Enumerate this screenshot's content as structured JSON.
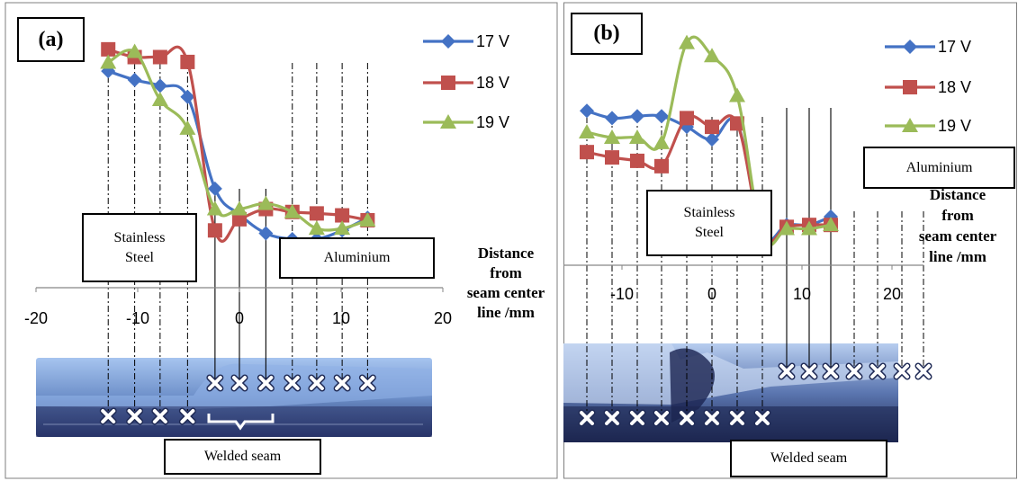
{
  "colors": {
    "s17": "#4472C4",
    "s18": "#C0504D",
    "s19": "#9BBB59"
  },
  "chart_data": [
    {
      "type": "line",
      "panel_label": "(a)",
      "x_ticks": [
        "-20",
        "-10",
        "0",
        "10",
        "20"
      ],
      "xlim": [
        -20,
        20
      ],
      "xlabel_lines": [
        "Distance",
        "from",
        "seam center",
        "line /mm"
      ],
      "series": [
        {
          "name": "17 V",
          "marker": "diamond",
          "x": [
            -12.9,
            -10.3,
            -7.8,
            -5.1,
            -2.4,
            0,
            2.6,
            5.2,
            7.6,
            10.1,
            12.6
          ],
          "y": [
            84.6,
            82.8,
            81.6,
            79.3,
            60.4,
            55.1,
            51.2,
            50.0,
            50.0,
            51.8,
            54.4
          ]
        },
        {
          "name": "18 V",
          "marker": "square",
          "x": [
            -12.9,
            -10.3,
            -7.8,
            -5.1,
            -2.4,
            0,
            2.6,
            5.2,
            7.6,
            10.1,
            12.6
          ],
          "y": [
            89.1,
            87.5,
            87.5,
            86.5,
            51.8,
            54.1,
            56.2,
            55.6,
            55.3,
            54.9,
            53.9
          ]
        },
        {
          "name": "19 V",
          "marker": "triangle",
          "x": [
            -12.9,
            -10.3,
            -7.8,
            -5.1,
            -2.4,
            0,
            2.6,
            5.2,
            7.6,
            10.1,
            12.6
          ],
          "y": [
            86.4,
            88.6,
            78.7,
            72.8,
            56.2,
            56.2,
            57.3,
            55.6,
            52.2,
            52.2,
            53.9
          ]
        }
      ]
    },
    {
      "type": "line",
      "panel_label": "(b)",
      "x_ticks": [
        "-10",
        "0",
        "10",
        "20"
      ],
      "xlim": [
        -16.5,
        23.5
      ],
      "xlabel_lines": [
        "Distance",
        "from",
        "seam center",
        "line /mm"
      ],
      "series": [
        {
          "name": "17 V",
          "marker": "diamond",
          "x": [
            -13.9,
            -11.1,
            -8.3,
            -5.6,
            -2.8,
            0,
            2.8,
            5.6,
            8.3,
            10.8,
            13.2
          ],
          "y": [
            71.8,
            70.3,
            70.7,
            70.7,
            68.5,
            65.9,
            69.2,
            46.4,
            48.3,
            48.3,
            50.0
          ]
        },
        {
          "name": "18 V",
          "marker": "square",
          "x": [
            -13.9,
            -11.1,
            -8.3,
            -5.6,
            -2.8,
            0,
            2.8,
            5.6,
            8.3,
            10.8,
            13.2
          ],
          "y": [
            63.3,
            62.2,
            61.5,
            60.4,
            70.3,
            68.5,
            69.2,
            46.0,
            47.9,
            48.3,
            48.3
          ]
        },
        {
          "name": "19 V",
          "marker": "triangle",
          "x": [
            -13.9,
            -11.1,
            -8.3,
            -5.6,
            -2.8,
            0,
            2.8,
            5.6,
            8.3,
            10.8,
            13.2
          ],
          "y": [
            67.4,
            66.3,
            66.3,
            65.2,
            85.8,
            83.1,
            74.9,
            46.0,
            47.5,
            47.5,
            48.3
          ]
        }
      ]
    }
  ],
  "annotations": {
    "stainless_line1": "Stainless",
    "stainless_line2": "Steel",
    "aluminium": "Aluminium",
    "welded_seam": "Welded seam"
  }
}
